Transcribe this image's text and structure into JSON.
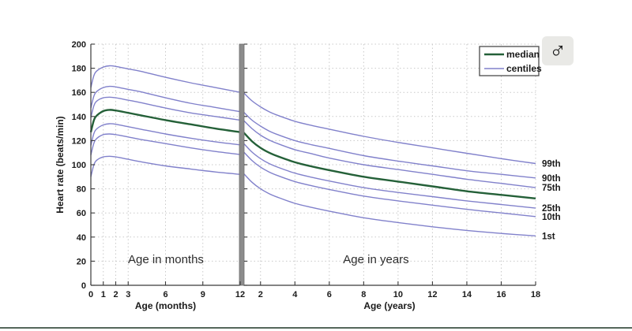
{
  "page": {
    "background": "#ffffff",
    "bottom_divider_color": "#55675b"
  },
  "sex_badge": {
    "symbol": "♂",
    "meaning": "male",
    "background": "#e9e9e6",
    "color": "#111111"
  },
  "chart_data": {
    "type": "line",
    "title": "",
    "ylabel": "Heart rate (beats/min)",
    "ylim": [
      0,
      200
    ],
    "yticks": [
      0,
      20,
      40,
      60,
      80,
      100,
      120,
      140,
      160,
      180,
      200
    ],
    "grid": true,
    "legend": {
      "position": "top-right",
      "entries": [
        {
          "label": "median",
          "color": "#246038",
          "width": 2.4
        },
        {
          "label": "centiles",
          "color": "#8181cb",
          "width": 1.4
        }
      ]
    },
    "colors": {
      "median": "#246038",
      "centile": "#8181cb",
      "grid": "#c9c9c9",
      "axis": "#3a3a3a",
      "panel_divider": "#8c8c8c",
      "text": "#1a1a1a",
      "inner_title": "#2e2e2e"
    },
    "right_labels": [
      "99th",
      "90th",
      "75th",
      "25th",
      "10th",
      "1st"
    ],
    "panels": [
      {
        "name": "months",
        "inner_title": "Age in months",
        "xlabel": "Age (months)",
        "xlim": [
          0,
          12
        ],
        "xticks": [
          0,
          1,
          2,
          3,
          6,
          9,
          12
        ],
        "x": [
          0,
          0.25,
          0.5,
          1,
          1.5,
          2,
          3,
          4,
          6,
          8,
          10,
          12
        ],
        "series": [
          {
            "name": "99th",
            "role": "centile",
            "values": [
              164,
              174,
              178,
              181,
              182,
              181.5,
              179.5,
              177.5,
              172.5,
              168,
              164,
              160
            ]
          },
          {
            "name": "90th",
            "role": "centile",
            "values": [
              147,
              157,
              161,
              164,
              165,
              164.5,
              162.5,
              160.5,
              155.5,
              151,
              147.5,
              144
            ]
          },
          {
            "name": "75th",
            "role": "centile",
            "values": [
              139,
              149,
              153,
              155.5,
              156,
              155.5,
              153.5,
              151.5,
              147,
              143,
              140,
              137
            ]
          },
          {
            "name": "median",
            "role": "median",
            "values": [
              127,
              137,
              141,
              144.5,
              145.5,
              145,
              143,
              141,
              137,
              133.5,
              130,
              127
            ]
          },
          {
            "name": "25th",
            "role": "centile",
            "values": [
              116,
              126,
              130,
              133,
              134,
              133.5,
              131.5,
              129.5,
              125.5,
              122,
              119,
              116.5
            ]
          },
          {
            "name": "10th",
            "role": "centile",
            "values": [
              108,
              118,
              122,
              125,
              125.5,
              125,
              123,
              121,
              117.5,
              114,
              111,
              108.5
            ]
          },
          {
            "name": "1st",
            "role": "centile",
            "values": [
              90,
              100,
              104,
              106.5,
              107,
              106.5,
              104.5,
              102.5,
              99,
              96.5,
              94,
              92
            ]
          }
        ]
      },
      {
        "name": "years",
        "inner_title": "Age in years",
        "xlabel": "Age (years)",
        "xlim": [
          1,
          18
        ],
        "xticks": [
          2,
          4,
          6,
          8,
          10,
          12,
          14,
          16,
          18
        ],
        "x": [
          1,
          1.5,
          2,
          2.5,
          3,
          4,
          5,
          6,
          8,
          10,
          12,
          14,
          16,
          18
        ],
        "series": [
          {
            "name": "99th",
            "role": "centile",
            "values": [
              160,
              153,
              148,
              144,
              141,
              136,
              132.5,
              129.5,
              123.5,
              118.5,
              114,
              109.5,
              105,
              101
            ]
          },
          {
            "name": "90th",
            "role": "centile",
            "values": [
              144,
              137,
              132,
              128,
              125,
              120,
              116.5,
              113.5,
              107.5,
              103,
              99,
              95,
              92,
              89
            ]
          },
          {
            "name": "75th",
            "role": "centile",
            "values": [
              137,
              130,
              124.5,
              120.5,
              117.5,
              112.5,
              109,
              105.5,
              100,
              96,
              92,
              88,
              84.5,
              81
            ]
          },
          {
            "name": "median",
            "role": "median",
            "values": [
              127,
              119.5,
              114,
              110,
              107,
              102,
              98.5,
              95.5,
              90,
              86,
              82,
              78,
              75,
              72
            ]
          },
          {
            "name": "25th",
            "role": "centile",
            "values": [
              118,
              110.5,
              105,
              101,
              98,
              93,
              89.5,
              86.5,
              81,
              77,
              73.5,
              70,
              67,
              64
            ]
          },
          {
            "name": "10th",
            "role": "centile",
            "values": [
              111,
              103.5,
              98,
              94,
              91,
              86,
              82.5,
              79.5,
              74,
              70,
              66.5,
              63,
              60,
              57
            ]
          },
          {
            "name": "1st",
            "role": "centile",
            "values": [
              93,
              85.5,
              80,
              76,
              73,
              68,
              64.5,
              61.5,
              56,
              52,
              48.5,
              45.5,
              43,
              41
            ]
          }
        ]
      }
    ]
  }
}
